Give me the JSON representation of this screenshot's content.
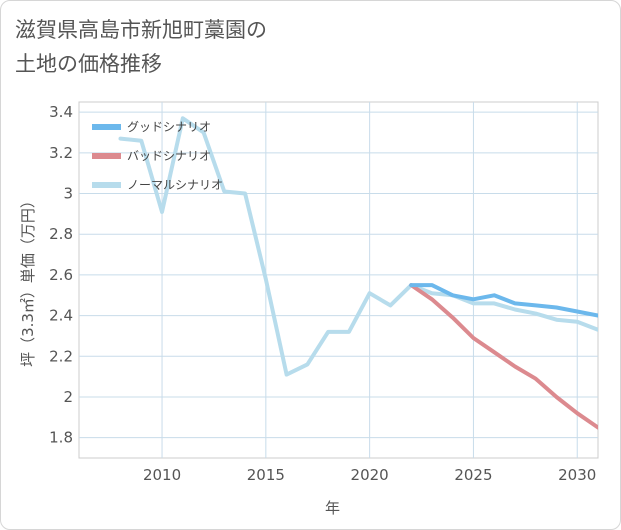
{
  "chart_data": {
    "type": "line",
    "title": "滋賀県高島市新旭町藁園の\n土地の価格推移",
    "xlabel": "年",
    "ylabel": "坪（3.3㎡）単価（万円）",
    "xlim": [
      2006,
      2031
    ],
    "ylim": [
      1.7,
      3.45
    ],
    "x_ticks": [
      2010,
      2015,
      2020,
      2025,
      2030
    ],
    "x_tick_labels": [
      "2010",
      "2015",
      "2020",
      "2025",
      "2030"
    ],
    "y_ticks": [
      1.8,
      2,
      2.2,
      2.4,
      2.6,
      2.8,
      3,
      3.2,
      3.4
    ],
    "y_tick_labels": [
      "1.8",
      "2",
      "2.2",
      "2.4",
      "2.6",
      "2.8",
      "3",
      "3.2",
      "3.4"
    ],
    "grid": true,
    "legend_position": "top-left",
    "series": [
      {
        "name": "グッドシナリオ",
        "color": "#6cb8ec",
        "x": [
          2022,
          2023,
          2024,
          2025,
          2026,
          2027,
          2028,
          2029,
          2030,
          2031
        ],
        "y": [
          2.55,
          2.55,
          2.5,
          2.48,
          2.5,
          2.46,
          2.45,
          2.44,
          2.42,
          2.4
        ]
      },
      {
        "name": "バッドシナリオ",
        "color": "#dc8a8f",
        "x": [
          2022,
          2023,
          2024,
          2025,
          2026,
          2027,
          2028,
          2029,
          2030,
          2031
        ],
        "y": [
          2.55,
          2.48,
          2.39,
          2.29,
          2.22,
          2.15,
          2.09,
          2.0,
          1.92,
          1.85
        ]
      },
      {
        "name": "ノーマルシナリオ",
        "color": "#b7dcec",
        "x": [
          2008,
          2009,
          2010,
          2011,
          2012,
          2013,
          2014,
          2015,
          2016,
          2017,
          2018,
          2019,
          2020,
          2021,
          2022,
          2023,
          2024,
          2025,
          2026,
          2027,
          2028,
          2029,
          2030,
          2031
        ],
        "y": [
          3.27,
          3.26,
          2.91,
          3.37,
          3.3,
          3.01,
          3.0,
          2.58,
          2.11,
          2.16,
          2.32,
          2.32,
          2.51,
          2.45,
          2.55,
          2.51,
          2.5,
          2.46,
          2.46,
          2.43,
          2.41,
          2.38,
          2.37,
          2.33
        ]
      }
    ]
  }
}
